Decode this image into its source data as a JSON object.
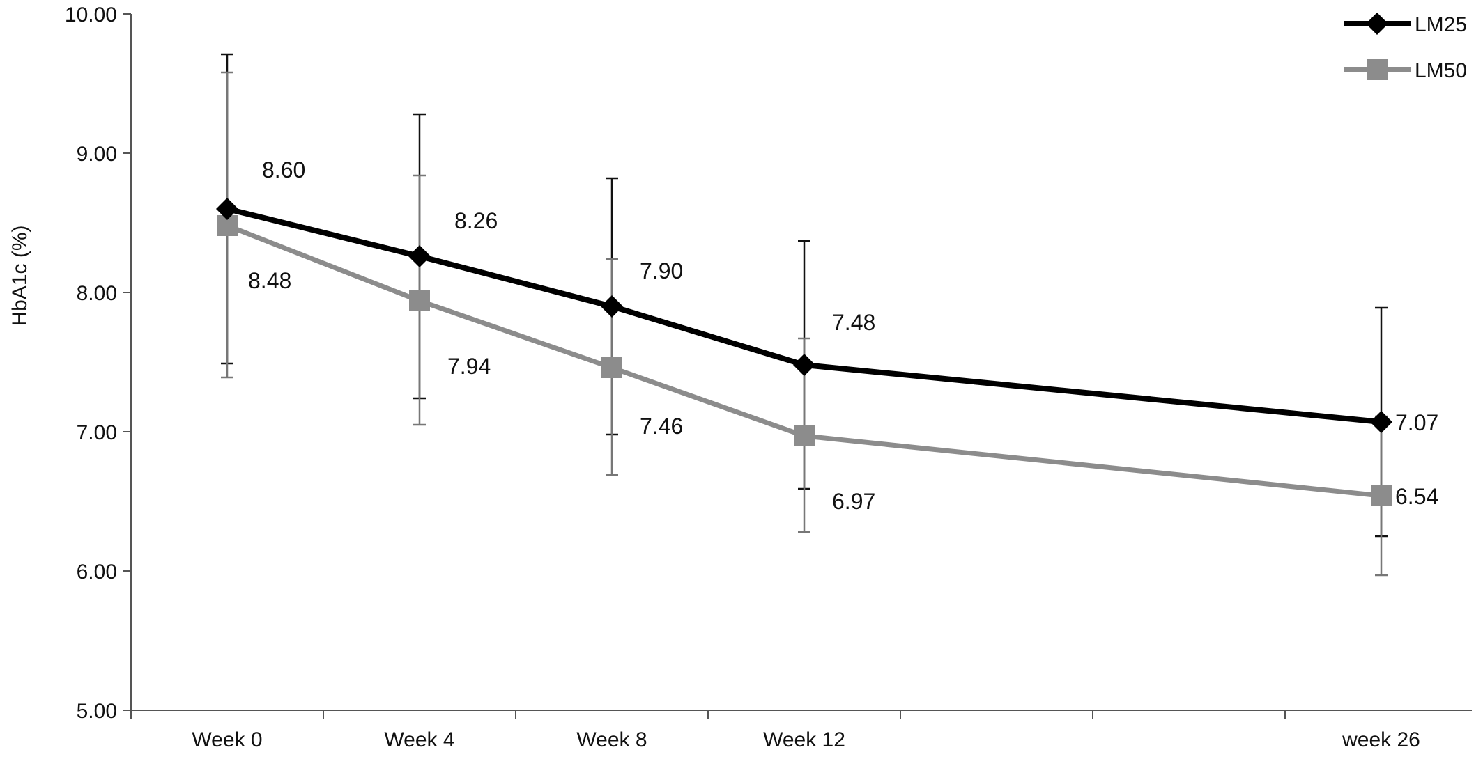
{
  "chart_data": {
    "type": "line",
    "title": "",
    "xlabel": "",
    "ylabel": "HbA1c (%)",
    "ylim": [
      5.0,
      10.0
    ],
    "yticks": [
      "5.00",
      "6.00",
      "7.00",
      "8.00",
      "9.00",
      "10.00"
    ],
    "categories": [
      "Week 0",
      "Week 4",
      "Week 8",
      "Week 12",
      "week 26"
    ],
    "x": [
      0,
      4,
      8,
      12,
      26
    ],
    "grid": false,
    "legend_position": "top-right",
    "series": [
      {
        "name": "LM25",
        "color": "#000000",
        "marker": "diamond",
        "values": [
          8.6,
          8.26,
          7.9,
          7.48,
          7.07
        ],
        "labels": [
          "8.60",
          "8.26",
          "7.90",
          "7.48",
          "7.07"
        ],
        "error_low": [
          7.49,
          7.24,
          6.98,
          6.59,
          6.25
        ],
        "error_high": [
          9.71,
          9.28,
          8.82,
          8.37,
          7.89
        ]
      },
      {
        "name": "LM50",
        "color": "#8c8c8c",
        "marker": "square",
        "values": [
          8.48,
          7.94,
          7.46,
          6.97,
          6.54
        ],
        "labels": [
          "8.48",
          "7.94",
          "7.46",
          "6.97",
          "6.54"
        ],
        "error_low": [
          7.39,
          7.05,
          6.69,
          6.28,
          5.97
        ],
        "error_high": [
          9.58,
          8.84,
          8.24,
          7.67,
          7.11
        ]
      }
    ]
  }
}
